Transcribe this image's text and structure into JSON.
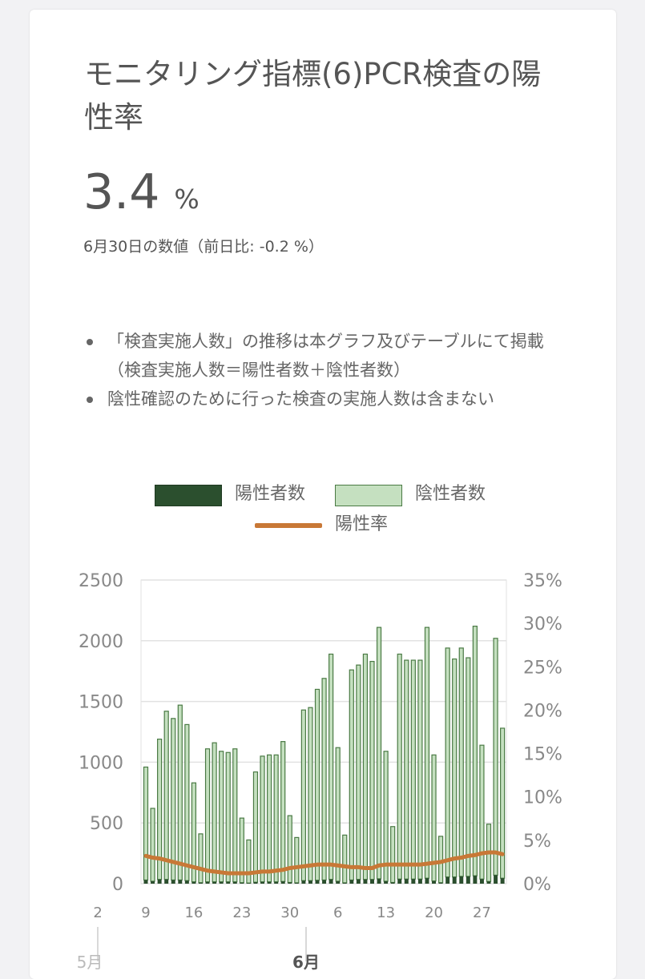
{
  "card": {
    "title": "モニタリング指標(6)PCR検査の陽性率",
    "value": "3.4",
    "unit": "%",
    "date_note": "6月30日の数値（前日比: -0.2 %）",
    "notes": [
      "「検査実施人数」の推移は本グラフ及びテーブルにて掲載（検査実施人数＝陽性者数＋陰性者数）",
      "陰性確認のために行った検査の実施人数は含まない"
    ]
  },
  "colors": {
    "positive": "#2b4f2e",
    "negative_fill": "#c5e0c0",
    "negative_stroke": "#4a7a44",
    "rate_line": "#c87836",
    "grid": "#e2e2e2",
    "axis_text": "#888888"
  },
  "chart_data": {
    "type": "bar",
    "stacked": true,
    "legend": [
      {
        "name": "陽性者数",
        "kind": "bar-dark"
      },
      {
        "name": "陰性者数",
        "kind": "bar-light"
      },
      {
        "name": "陽性率",
        "kind": "line"
      }
    ],
    "left_axis": {
      "ticks": [
        "2500",
        "2000",
        "1500",
        "1000",
        "500",
        "0"
      ],
      "min": 0,
      "max": 2500
    },
    "right_axis": {
      "ticks": [
        "35%",
        "30%",
        "25%",
        "20%",
        "15%",
        "10%",
        "5%",
        "0%"
      ],
      "min": 0,
      "max": 35
    },
    "x_ticks": [
      {
        "label": "2",
        "index": -7
      },
      {
        "label": "9",
        "index": 0
      },
      {
        "label": "16",
        "index": 7
      },
      {
        "label": "23",
        "index": 14
      },
      {
        "label": "30",
        "index": 21
      },
      {
        "label": "6",
        "index": 28
      },
      {
        "label": "13",
        "index": 35
      },
      {
        "label": "20",
        "index": 42
      },
      {
        "label": "27",
        "index": 49
      }
    ],
    "month_labels": [
      "5月",
      "6月"
    ],
    "totals": [
      960,
      620,
      1190,
      1420,
      1360,
      1470,
      1310,
      830,
      410,
      1110,
      1160,
      1090,
      1080,
      1110,
      540,
      360,
      920,
      1050,
      1060,
      1060,
      1170,
      560,
      380,
      1430,
      1450,
      1600,
      1690,
      1890,
      1120,
      400,
      1760,
      1800,
      1890,
      1830,
      2110,
      1090,
      470,
      1890,
      1840,
      1840,
      1840,
      2110,
      1060,
      390,
      1940,
      1850,
      1940,
      1860,
      2120,
      1140,
      490,
      2020,
      1280
    ],
    "positives": [
      30,
      20,
      35,
      35,
      30,
      30,
      25,
      15,
      8,
      15,
      15,
      15,
      15,
      15,
      8,
      5,
      12,
      15,
      15,
      15,
      18,
      10,
      7,
      25,
      25,
      28,
      30,
      35,
      20,
      7,
      30,
      35,
      35,
      35,
      40,
      20,
      10,
      38,
      38,
      38,
      38,
      45,
      22,
      8,
      55,
      55,
      60,
      60,
      65,
      38,
      18,
      70,
      45
    ],
    "rate_percent": [
      3.2,
      3.0,
      2.9,
      2.7,
      2.5,
      2.3,
      2.1,
      1.9,
      1.7,
      1.5,
      1.4,
      1.3,
      1.2,
      1.2,
      1.2,
      1.2,
      1.3,
      1.4,
      1.4,
      1.5,
      1.6,
      1.8,
      1.9,
      2.0,
      2.1,
      2.2,
      2.2,
      2.2,
      2.1,
      2.0,
      1.9,
      1.9,
      1.8,
      1.8,
      2.1,
      2.2,
      2.2,
      2.2,
      2.2,
      2.2,
      2.2,
      2.3,
      2.4,
      2.5,
      2.7,
      2.9,
      3.0,
      3.2,
      3.3,
      3.5,
      3.6,
      3.6,
      3.4
    ]
  }
}
